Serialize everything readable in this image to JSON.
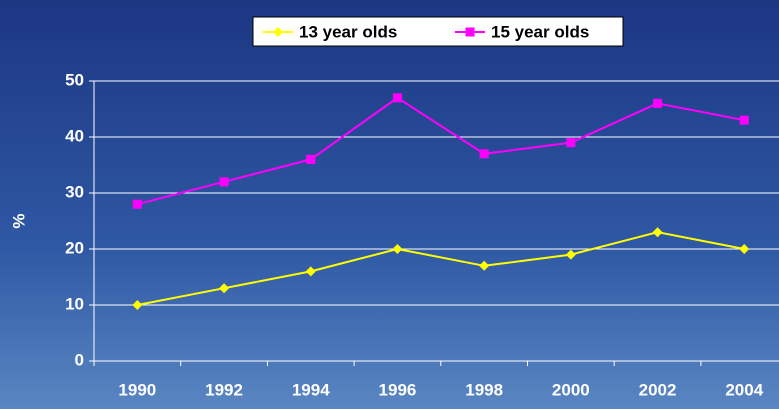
{
  "chart_data": {
    "type": "line",
    "ylabel": "%",
    "categories": [
      "1990",
      "1992",
      "1994",
      "1996",
      "1998",
      "2000",
      "2002",
      "2004"
    ],
    "series": [
      {
        "name": "13 year olds",
        "color": "#ffff00",
        "marker": "diamond",
        "values": [
          10,
          13,
          16,
          20,
          17,
          19,
          23,
          20
        ]
      },
      {
        "name": "15 year olds",
        "color": "#ff00ff",
        "marker": "square",
        "values": [
          28,
          32,
          36,
          47,
          37,
          39,
          46,
          43
        ]
      }
    ],
    "ylim": [
      0,
      50
    ],
    "yticks": [
      0,
      10,
      20,
      30,
      40,
      50
    ],
    "grid": true,
    "legend": "top"
  }
}
